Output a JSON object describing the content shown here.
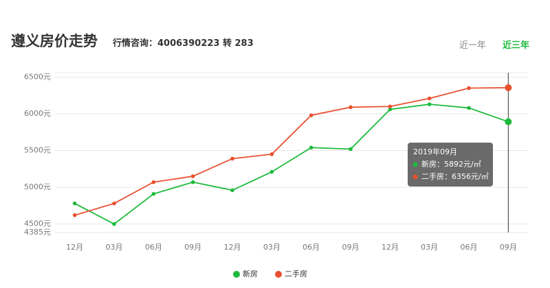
{
  "header": {
    "title": "遵义房价走势",
    "hotline": "行情咨询：4006390223 转 283",
    "tabs": [
      "近一年",
      "近三年"
    ],
    "active_tab": 1
  },
  "chart_data": {
    "type": "line",
    "categories": [
      "12月",
      "03月",
      "06月",
      "09月",
      "12月",
      "03月",
      "06月",
      "09月",
      "12月",
      "03月",
      "06月",
      "09月"
    ],
    "series": [
      {
        "name": "新房",
        "color": "#1dba3c",
        "values": [
          4780,
          4500,
          4910,
          5070,
          4960,
          5210,
          5540,
          5520,
          6060,
          6130,
          6080,
          5892
        ]
      },
      {
        "name": "二手房",
        "color": "#e8502f",
        "values": [
          4620,
          4780,
          5070,
          5150,
          5390,
          5450,
          5980,
          6090,
          6100,
          6210,
          6350,
          6356
        ]
      }
    ],
    "ylim": [
      4385,
      6560
    ],
    "yticks": [
      {
        "value": 4385,
        "label": "4385元"
      },
      {
        "value": 4500,
        "label": "4500元"
      },
      {
        "value": 5000,
        "label": "5000元"
      },
      {
        "value": 5500,
        "label": "5500元"
      },
      {
        "value": 6000,
        "label": "6000元"
      },
      {
        "value": 6500,
        "label": "6500元"
      }
    ],
    "grid": true,
    "tooltip": {
      "title": "2019年09月",
      "rows": [
        "新房：5892元/㎡",
        "二手房：6356元/㎡"
      ]
    }
  }
}
